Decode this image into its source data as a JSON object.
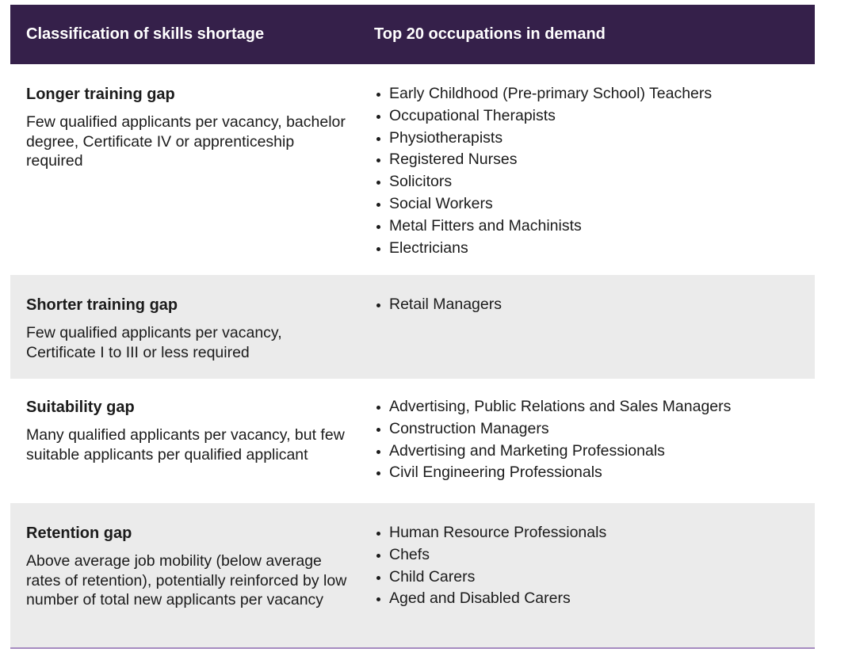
{
  "header": {
    "col1": "Classification of skills shortage",
    "col2": "Top 20 occupations in demand"
  },
  "rows": [
    {
      "title": "Longer training gap",
      "description": "Few qualified applicants per vacancy, bachelor degree, Certificate IV or apprenticeship required",
      "occupations": [
        "Early Childhood (Pre-primary School) Teachers",
        "Occupational Therapists",
        "Physiotherapists",
        "Registered Nurses",
        "Solicitors",
        "Social Workers",
        "Metal Fitters and Machinists",
        "Electricians"
      ]
    },
    {
      "title": "Shorter training gap",
      "description": "Few qualified applicants per vacancy, Certificate I to III or less required",
      "occupations": [
        "Retail Managers"
      ]
    },
    {
      "title": "Suitability gap",
      "description": "Many qualified applicants per vacancy, but few suitable applicants per qualified applicant",
      "occupations": [
        "Advertising, Public Relations and Sales Managers",
        "Construction Managers",
        "Advertising and Marketing Professionals",
        "Civil Engineering Professionals"
      ]
    },
    {
      "title": "Retention gap",
      "description": "Above average job mobility (below average rates of retention), potentially reinforced by low number of total new applicants per vacancy",
      "occupations": [
        "Human Resource Professionals",
        "Chefs",
        "Child Carers",
        "Aged and Disabled Carers"
      ]
    }
  ],
  "colors": {
    "header_bg": "#35204a",
    "alt_row_bg": "#ebebeb",
    "rule": "#a58bc0"
  }
}
